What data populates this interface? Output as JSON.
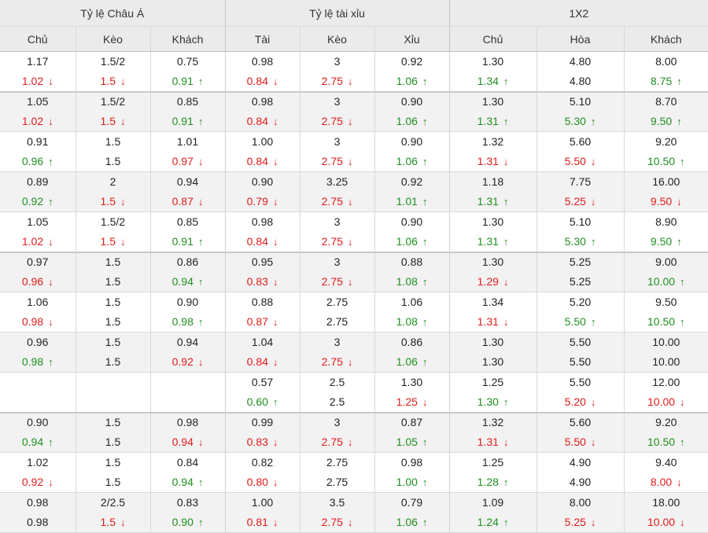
{
  "header": {
    "groups": [
      "Tỷ lệ Châu Á",
      "Tỷ lệ tài xỉu",
      "1X2"
    ],
    "columns": [
      "Chủ",
      "Kèo",
      "Khách",
      "Tài",
      "Kèo",
      "Xỉu",
      "Chủ",
      "Hòa",
      "Khách"
    ]
  },
  "arrows": {
    "up": "↑",
    "down": "↓"
  },
  "colors": {
    "up": "#1f8f1f",
    "down": "#e01b1b",
    "header_bg": "#ebebeb",
    "row_alt_bg": "#f2f2f2"
  },
  "rows": [
    {
      "cells": [
        {
          "o": "1.17",
          "c": "1.02",
          "d": "down"
        },
        {
          "o": "1.5/2",
          "c": "1.5",
          "d": "down"
        },
        {
          "o": "0.75",
          "c": "0.91",
          "d": "up"
        },
        {
          "o": "0.98",
          "c": "0.84",
          "d": "down"
        },
        {
          "o": "3",
          "c": "2.75",
          "d": "down"
        },
        {
          "o": "0.92",
          "c": "1.06",
          "d": "up"
        },
        {
          "o": "1.30",
          "c": "1.34",
          "d": "up"
        },
        {
          "o": "4.80",
          "c": "4.80",
          "d": ""
        },
        {
          "o": "8.00",
          "c": "8.75",
          "d": "up"
        }
      ]
    },
    {
      "cells": [
        {
          "o": "1.05",
          "c": "1.02",
          "d": "down"
        },
        {
          "o": "1.5/2",
          "c": "1.5",
          "d": "down"
        },
        {
          "o": "0.85",
          "c": "0.91",
          "d": "up"
        },
        {
          "o": "0.98",
          "c": "0.84",
          "d": "down"
        },
        {
          "o": "3",
          "c": "2.75",
          "d": "down"
        },
        {
          "o": "0.90",
          "c": "1.06",
          "d": "up"
        },
        {
          "o": "1.30",
          "c": "1.31",
          "d": "up"
        },
        {
          "o": "5.10",
          "c": "5.30",
          "d": "up"
        },
        {
          "o": "8.70",
          "c": "9.50",
          "d": "up"
        }
      ]
    },
    {
      "cells": [
        {
          "o": "0.91",
          "c": "0.96",
          "d": "up"
        },
        {
          "o": "1.5",
          "c": "1.5",
          "d": ""
        },
        {
          "o": "1.01",
          "c": "0.97",
          "d": "down"
        },
        {
          "o": "1.00",
          "c": "0.84",
          "d": "down"
        },
        {
          "o": "3",
          "c": "2.75",
          "d": "down"
        },
        {
          "o": "0.90",
          "c": "1.06",
          "d": "up"
        },
        {
          "o": "1.32",
          "c": "1.31",
          "d": "down"
        },
        {
          "o": "5.60",
          "c": "5.50",
          "d": "down"
        },
        {
          "o": "9.20",
          "c": "10.50",
          "d": "up"
        }
      ]
    },
    {
      "cells": [
        {
          "o": "0.89",
          "c": "0.92",
          "d": "up"
        },
        {
          "o": "2",
          "c": "1.5",
          "d": "down"
        },
        {
          "o": "0.94",
          "c": "0.87",
          "d": "down"
        },
        {
          "o": "0.90",
          "c": "0.79",
          "d": "down"
        },
        {
          "o": "3.25",
          "c": "2.75",
          "d": "down"
        },
        {
          "o": "0.92",
          "c": "1.01",
          "d": "up"
        },
        {
          "o": "1.18",
          "c": "1.31",
          "d": "up"
        },
        {
          "o": "7.75",
          "c": "5.25",
          "d": "down"
        },
        {
          "o": "16.00",
          "c": "9.50",
          "d": "down"
        }
      ]
    },
    {
      "cells": [
        {
          "o": "1.05",
          "c": "1.02",
          "d": "down"
        },
        {
          "o": "1.5/2",
          "c": "1.5",
          "d": "down"
        },
        {
          "o": "0.85",
          "c": "0.91",
          "d": "up"
        },
        {
          "o": "0.98",
          "c": "0.84",
          "d": "down"
        },
        {
          "o": "3",
          "c": "2.75",
          "d": "down"
        },
        {
          "o": "0.90",
          "c": "1.06",
          "d": "up"
        },
        {
          "o": "1.30",
          "c": "1.31",
          "d": "up"
        },
        {
          "o": "5.10",
          "c": "5.30",
          "d": "up"
        },
        {
          "o": "8.90",
          "c": "9.50",
          "d": "up"
        }
      ]
    },
    {
      "cells": [
        {
          "o": "0.97",
          "c": "0.96",
          "d": "down"
        },
        {
          "o": "1.5",
          "c": "1.5",
          "d": ""
        },
        {
          "o": "0.86",
          "c": "0.94",
          "d": "up"
        },
        {
          "o": "0.95",
          "c": "0.83",
          "d": "down"
        },
        {
          "o": "3",
          "c": "2.75",
          "d": "down"
        },
        {
          "o": "0.88",
          "c": "1.08",
          "d": "up"
        },
        {
          "o": "1.30",
          "c": "1.29",
          "d": "down"
        },
        {
          "o": "5.25",
          "c": "5.25",
          "d": ""
        },
        {
          "o": "9.00",
          "c": "10.00",
          "d": "up"
        }
      ]
    },
    {
      "cells": [
        {
          "o": "1.06",
          "c": "0.98",
          "d": "down"
        },
        {
          "o": "1.5",
          "c": "1.5",
          "d": ""
        },
        {
          "o": "0.90",
          "c": "0.98",
          "d": "up"
        },
        {
          "o": "0.88",
          "c": "0.87",
          "d": "down"
        },
        {
          "o": "2.75",
          "c": "2.75",
          "d": ""
        },
        {
          "o": "1.06",
          "c": "1.08",
          "d": "up"
        },
        {
          "o": "1.34",
          "c": "1.31",
          "d": "down"
        },
        {
          "o": "5.20",
          "c": "5.50",
          "d": "up"
        },
        {
          "o": "9.50",
          "c": "10.50",
          "d": "up"
        }
      ]
    },
    {
      "cells": [
        {
          "o": "0.96",
          "c": "0.98",
          "d": "up"
        },
        {
          "o": "1.5",
          "c": "1.5",
          "d": ""
        },
        {
          "o": "0.94",
          "c": "0.92",
          "d": "down"
        },
        {
          "o": "1.04",
          "c": "0.84",
          "d": "down"
        },
        {
          "o": "3",
          "c": "2.75",
          "d": "down"
        },
        {
          "o": "0.86",
          "c": "1.06",
          "d": "up"
        },
        {
          "o": "1.30",
          "c": "1.30",
          "d": ""
        },
        {
          "o": "5.50",
          "c": "5.50",
          "d": ""
        },
        {
          "o": "10.00",
          "c": "10.00",
          "d": ""
        }
      ]
    },
    {
      "cells": [
        {
          "o": "",
          "c": "",
          "d": ""
        },
        {
          "o": "",
          "c": "",
          "d": ""
        },
        {
          "o": "",
          "c": "",
          "d": ""
        },
        {
          "o": "0.57",
          "c": "0.60",
          "d": "up"
        },
        {
          "o": "2.5",
          "c": "2.5",
          "d": ""
        },
        {
          "o": "1.30",
          "c": "1.25",
          "d": "down"
        },
        {
          "o": "1.25",
          "c": "1.30",
          "d": "up"
        },
        {
          "o": "5.50",
          "c": "5.20",
          "d": "down"
        },
        {
          "o": "12.00",
          "c": "10.00",
          "d": "down"
        }
      ]
    },
    {
      "cells": [
        {
          "o": "0.90",
          "c": "0.94",
          "d": "up"
        },
        {
          "o": "1.5",
          "c": "1.5",
          "d": ""
        },
        {
          "o": "0.98",
          "c": "0.94",
          "d": "down"
        },
        {
          "o": "0.99",
          "c": "0.83",
          "d": "down"
        },
        {
          "o": "3",
          "c": "2.75",
          "d": "down"
        },
        {
          "o": "0.87",
          "c": "1.05",
          "d": "up"
        },
        {
          "o": "1.32",
          "c": "1.31",
          "d": "down"
        },
        {
          "o": "5.60",
          "c": "5.50",
          "d": "down"
        },
        {
          "o": "9.20",
          "c": "10.50",
          "d": "up"
        }
      ]
    },
    {
      "cells": [
        {
          "o": "1.02",
          "c": "0.92",
          "d": "down"
        },
        {
          "o": "1.5",
          "c": "1.5",
          "d": ""
        },
        {
          "o": "0.84",
          "c": "0.94",
          "d": "up"
        },
        {
          "o": "0.82",
          "c": "0.80",
          "d": "down"
        },
        {
          "o": "2.75",
          "c": "2.75",
          "d": ""
        },
        {
          "o": "0.98",
          "c": "1.00",
          "d": "up"
        },
        {
          "o": "1.25",
          "c": "1.28",
          "d": "up"
        },
        {
          "o": "4.90",
          "c": "4.90",
          "d": ""
        },
        {
          "o": "9.40",
          "c": "8.00",
          "d": "down"
        }
      ]
    },
    {
      "cells": [
        {
          "o": "0.98",
          "c": "0.98",
          "d": ""
        },
        {
          "o": "2/2.5",
          "c": "1.5",
          "d": "down"
        },
        {
          "o": "0.83",
          "c": "0.90",
          "d": "up"
        },
        {
          "o": "1.00",
          "c": "0.81",
          "d": "down"
        },
        {
          "o": "3.5",
          "c": "2.75",
          "d": "down"
        },
        {
          "o": "0.79",
          "c": "1.06",
          "d": "up"
        },
        {
          "o": "1.09",
          "c": "1.24",
          "d": "up"
        },
        {
          "o": "8.00",
          "c": "5.25",
          "d": "down"
        },
        {
          "o": "18.00",
          "c": "10.00",
          "d": "down"
        }
      ]
    }
  ]
}
